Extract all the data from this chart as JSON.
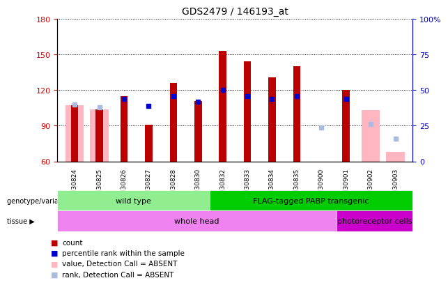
{
  "title": "GDS2479 / 146193_at",
  "samples": [
    "GSM30824",
    "GSM30825",
    "GSM30826",
    "GSM30827",
    "GSM30828",
    "GSM30830",
    "GSM30832",
    "GSM30833",
    "GSM30834",
    "GSM30835",
    "GSM30900",
    "GSM30901",
    "GSM30902",
    "GSM30903"
  ],
  "count_values": [
    107,
    104,
    115,
    91,
    126,
    111,
    153,
    144,
    131,
    140,
    null,
    120,
    null,
    null
  ],
  "percentile_rank": [
    null,
    null,
    44,
    39,
    46,
    42,
    50,
    46,
    44,
    46,
    null,
    44,
    null,
    null
  ],
  "absent_value": [
    107,
    104,
    null,
    null,
    null,
    null,
    null,
    null,
    null,
    null,
    null,
    null,
    103,
    68
  ],
  "absent_rank_pct": [
    40,
    38,
    null,
    null,
    null,
    null,
    null,
    null,
    null,
    null,
    24,
    null,
    26,
    16
  ],
  "ylim": [
    60,
    180
  ],
  "yticks": [
    60,
    90,
    120,
    150,
    180
  ],
  "y2lim": [
    0,
    100
  ],
  "y2ticks": [
    0,
    25,
    50,
    75,
    100
  ],
  "genotype_groups": [
    {
      "label": "wild type",
      "start": 0,
      "end": 6,
      "color": "#90EE90"
    },
    {
      "label": "FLAG-tagged PABP transgenic",
      "start": 6,
      "end": 14,
      "color": "#00CC00"
    }
  ],
  "tissue_groups": [
    {
      "label": "whole head",
      "start": 0,
      "end": 11,
      "color": "#EE82EE"
    },
    {
      "label": "photoreceptor cells",
      "start": 11,
      "end": 14,
      "color": "#CC00CC"
    }
  ],
  "bar_color": "#BB0000",
  "bar_width": 0.3,
  "absent_bar_color": "#FFB6C1",
  "absent_rank_color": "#AABBDD",
  "percentile_color": "#0000CC",
  "left_axis_color": "#CC0000",
  "right_axis_color": "#0000BB"
}
